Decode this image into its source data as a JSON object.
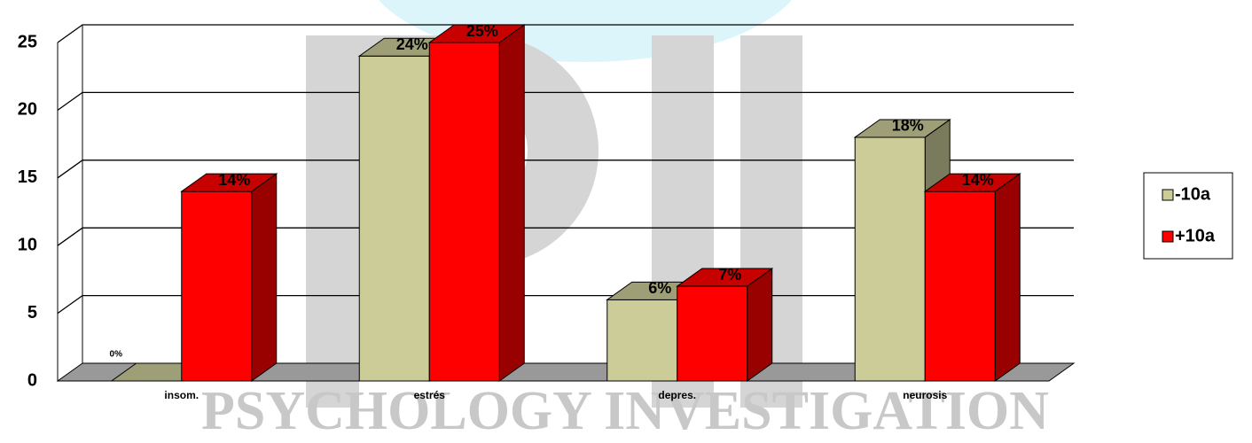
{
  "watermark": "PSYCHOLOGY INVESTIGATION",
  "chart_data": {
    "type": "bar3d",
    "categories": [
      "insom.",
      "estrés",
      "depres.",
      "neurosis"
    ],
    "series": [
      {
        "name": "-10a",
        "color": "#cccc99",
        "values": [
          0,
          24,
          6,
          18
        ],
        "value_labels": [
          "0%",
          "24%",
          "6%",
          "18%"
        ]
      },
      {
        "name": "+10a",
        "color": "#ff0000",
        "values": [
          14,
          25,
          7,
          14
        ],
        "value_labels": [
          "14%",
          "25%",
          "7%",
          "14%"
        ]
      }
    ],
    "ylim": [
      0,
      25
    ],
    "yticks": [
      0,
      5,
      10,
      15,
      20,
      25
    ],
    "grid": true,
    "legend": "right"
  }
}
